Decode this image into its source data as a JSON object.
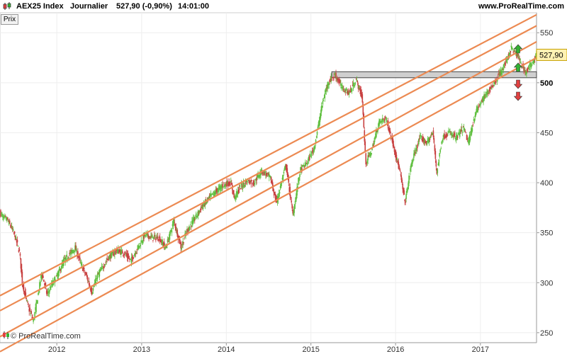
{
  "header": {
    "instrument": "AEX25 Index",
    "period": "Journalier",
    "quote": "527,90 (-0,90%)",
    "time": "14:01:00",
    "site": "www.ProRealTime.com"
  },
  "panel_label": "Prix",
  "watermark": "© ProRealTime.com",
  "icons": {
    "header": "candlestick-icon",
    "watermark": "prorealtime-logo-icon",
    "arrows_up": "green-up-arrow-icon",
    "arrows_down": "red-down-arrow-icon"
  },
  "colors": {
    "up_candle": "#5fbf3f",
    "down_candle": "#c84040",
    "channel_line": "#ec8a52",
    "resistance_zone": "#cfcfcf",
    "price_tag": "#fff2b3",
    "arrow_up": "#33b233",
    "arrow_down": "#e04040"
  },
  "chart_data": {
    "type": "candlestick",
    "title": "",
    "xlabel": "",
    "ylabel": "Prix",
    "x_range": [
      "2011-05-01",
      "2017-08-31"
    ],
    "ylim": [
      240,
      570
    ],
    "y_ticks": [
      250,
      300,
      350,
      400,
      450,
      500,
      550
    ],
    "y_tick_labels": [
      "250",
      "300",
      "350",
      "400",
      "450",
      "500",
      "550"
    ],
    "highlighted_tick": "500",
    "x_ticks": [
      "2012",
      "2013",
      "2014",
      "2015",
      "2016",
      "2017"
    ],
    "last_price": 527.9,
    "last_price_label": "527,90",
    "price_path": [
      [
        "2011-05-01",
        370
      ],
      [
        "2011-05-15",
        365
      ],
      [
        "2011-06-01",
        363
      ],
      [
        "2011-06-20",
        355
      ],
      [
        "2011-07-05",
        346
      ],
      [
        "2011-07-25",
        330
      ],
      [
        "2011-08-05",
        300
      ],
      [
        "2011-08-20",
        285
      ],
      [
        "2011-09-05",
        272
      ],
      [
        "2011-09-22",
        262
      ],
      [
        "2011-10-10",
        285
      ],
      [
        "2011-10-28",
        310
      ],
      [
        "2011-11-20",
        288
      ],
      [
        "2011-12-10",
        298
      ],
      [
        "2012-01-05",
        308
      ],
      [
        "2012-02-01",
        322
      ],
      [
        "2012-03-01",
        330
      ],
      [
        "2012-03-20",
        335
      ],
      [
        "2012-04-15",
        318
      ],
      [
        "2012-05-10",
        305
      ],
      [
        "2012-06-01",
        290
      ],
      [
        "2012-06-20",
        305
      ],
      [
        "2012-07-15",
        315
      ],
      [
        "2012-08-10",
        325
      ],
      [
        "2012-09-15",
        332
      ],
      [
        "2012-10-15",
        330
      ],
      [
        "2012-11-15",
        322
      ],
      [
        "2012-12-15",
        335
      ],
      [
        "2013-01-15",
        348
      ],
      [
        "2013-02-15",
        345
      ],
      [
        "2013-03-15",
        345
      ],
      [
        "2013-04-15",
        335
      ],
      [
        "2013-05-20",
        362
      ],
      [
        "2013-06-20",
        335
      ],
      [
        "2013-07-15",
        352
      ],
      [
        "2013-08-15",
        363
      ],
      [
        "2013-09-15",
        375
      ],
      [
        "2013-10-20",
        385
      ],
      [
        "2013-11-20",
        392
      ],
      [
        "2013-12-20",
        398
      ],
      [
        "2014-01-20",
        400
      ],
      [
        "2014-02-05",
        385
      ],
      [
        "2014-03-01",
        395
      ],
      [
        "2014-04-01",
        402
      ],
      [
        "2014-05-01",
        400
      ],
      [
        "2014-06-01",
        412
      ],
      [
        "2014-07-10",
        405
      ],
      [
        "2014-08-05",
        380
      ],
      [
        "2014-09-15",
        418
      ],
      [
        "2014-10-15",
        368
      ],
      [
        "2014-11-15",
        412
      ],
      [
        "2014-12-15",
        420
      ],
      [
        "2015-01-15",
        435
      ],
      [
        "2015-02-20",
        480
      ],
      [
        "2015-03-15",
        500
      ],
      [
        "2015-04-15",
        508
      ],
      [
        "2015-05-15",
        495
      ],
      [
        "2015-06-15",
        490
      ],
      [
        "2015-07-15",
        503
      ],
      [
        "2015-08-10",
        485
      ],
      [
        "2015-08-25",
        420
      ],
      [
        "2015-09-20",
        432
      ],
      [
        "2015-10-20",
        460
      ],
      [
        "2015-11-20",
        465
      ],
      [
        "2015-12-20",
        440
      ],
      [
        "2016-01-20",
        410
      ],
      [
        "2016-02-11",
        380
      ],
      [
        "2016-03-10",
        420
      ],
      [
        "2016-04-15",
        445
      ],
      [
        "2016-05-15",
        440
      ],
      [
        "2016-06-10",
        450
      ],
      [
        "2016-06-27",
        410
      ],
      [
        "2016-07-20",
        445
      ],
      [
        "2016-08-20",
        450
      ],
      [
        "2016-09-20",
        445
      ],
      [
        "2016-10-20",
        455
      ],
      [
        "2016-11-10",
        440
      ],
      [
        "2016-12-10",
        470
      ],
      [
        "2017-01-15",
        485
      ],
      [
        "2017-02-15",
        495
      ],
      [
        "2017-03-15",
        505
      ],
      [
        "2017-04-15",
        518
      ],
      [
        "2017-05-15",
        535
      ],
      [
        "2017-06-15",
        525
      ],
      [
        "2017-07-15",
        510
      ],
      [
        "2017-08-10",
        520
      ],
      [
        "2017-08-31",
        527.9
      ]
    ],
    "channel_lines": [
      {
        "start": [
          "2011-05-01",
          287
        ],
        "end": [
          "2017-08-31",
          568
        ]
      },
      {
        "start": [
          "2011-05-01",
          272
        ],
        "end": [
          "2017-08-31",
          557
        ]
      },
      {
        "start": [
          "2011-05-01",
          246
        ],
        "end": [
          "2017-08-31",
          541
        ]
      },
      {
        "start": [
          "2011-05-01",
          231
        ],
        "end": [
          "2017-08-31",
          525
        ]
      }
    ],
    "resistance_zone": {
      "from": "2015-04-01",
      "to": "2017-08-31",
      "low": 505,
      "high": 511
    }
  }
}
